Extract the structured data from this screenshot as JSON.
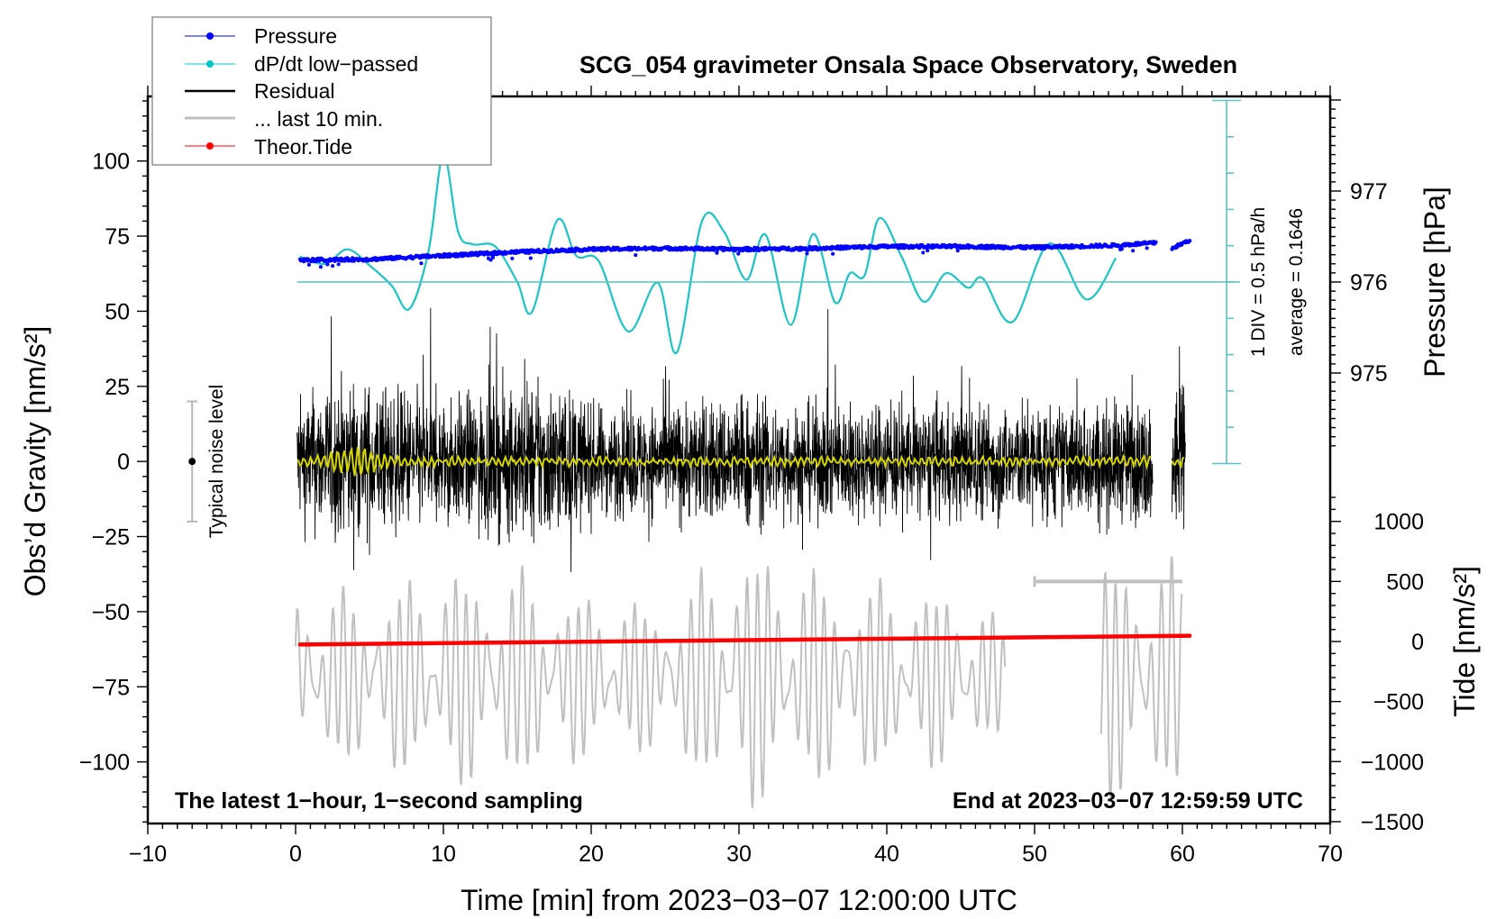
{
  "chart_data": {
    "type": "line",
    "title": "SCG_054 gravimeter Onsala Space Observatory, Sweden",
    "xlabel": "Time [min] from 2023−03−07 12:00:00 UTC",
    "ylabel": "Obs’d Gravity [nm/s²]",
    "y2label": "Pressure [hPa]",
    "y3label": "Tide [nm/s²]",
    "xlim": [
      -10,
      70
    ],
    "ylim": [
      -120.5,
      121.5
    ],
    "pressure_lim": [
      975,
      977
    ],
    "tide_lim": [
      -1500,
      1000
    ],
    "x_ticks": [
      "−10",
      "0",
      "10",
      "20",
      "30",
      "40",
      "50",
      "60",
      "70"
    ],
    "x_tick_values": [
      -10,
      0,
      10,
      20,
      30,
      40,
      50,
      60,
      70
    ],
    "y_ticks": [
      "−100",
      "−75",
      "−50",
      "−25",
      "0",
      "25",
      "50",
      "75",
      "100"
    ],
    "y_tick_values": [
      -100,
      -75,
      -50,
      -25,
      0,
      25,
      50,
      75,
      100
    ],
    "pressure_ticks": [
      "975",
      "976",
      "977"
    ],
    "pressure_tick_values": [
      975,
      976,
      977
    ],
    "tide_ticks": [
      "−1500",
      "−1000",
      "−500",
      "0",
      "500",
      "1000"
    ],
    "tide_tick_values": [
      -1500,
      -1000,
      -500,
      0,
      500,
      1000
    ],
    "legend": {
      "placement": "top-left",
      "entries": [
        {
          "label": "Pressure",
          "color": "#0000ff",
          "marker": "dot"
        },
        {
          "label": "dP/dt low−passed",
          "color": "#00c8c8",
          "marker": "dot"
        },
        {
          "label": "Residual",
          "color": "#000000",
          "marker": "line"
        },
        {
          "label": "... last 10 min.",
          "color": "#c0c0c0",
          "marker": "line"
        },
        {
          "label": "Theor.Tide",
          "color": "#ff0000",
          "marker": "dot"
        }
      ]
    },
    "annotations": {
      "left_bottom": "The latest 1−hour, 1−second sampling",
      "right_bottom": "End at 2023−03−07 12:59:59 UTC",
      "div_scale": "1 DIV = 0.5 hPa/h",
      "average": "average = 0.1646",
      "noise": "Typical noise level"
    },
    "noise_level": {
      "time": -7,
      "range": [
        -20,
        20
      ]
    },
    "dpdt_scale": {
      "hpa_per_h_per_div": 0.5,
      "divisions_each_side": 5,
      "zero_pressure": 976
    },
    "pressure": {
      "segments": [
        [
          0.3,
          58.2
        ],
        [
          59.3,
          60.5
        ]
      ],
      "t": [
        0.3,
        5,
        10,
        15,
        20,
        25,
        30,
        35,
        40,
        45,
        50,
        55,
        58.2,
        59.3,
        60.5
      ],
      "hPa": [
        976.24,
        976.25,
        976.29,
        976.33,
        976.36,
        976.37,
        976.36,
        976.37,
        976.39,
        976.39,
        976.38,
        976.4,
        976.43,
        976.37,
        976.46
      ]
    },
    "dpdt": {
      "t": [
        0.3,
        2,
        3.5,
        5,
        6.5,
        7.7,
        9,
        10,
        11,
        12,
        13.5,
        15,
        16,
        17.7,
        19,
        20.5,
        22.5,
        24.5,
        25.8,
        27.5,
        29,
        30.5,
        31.8,
        33.5,
        35,
        36.5,
        37.5,
        38.5,
        39.5,
        41,
        42.5,
        44,
        45.5,
        46.5,
        48.5,
        51,
        53.5,
        55.5
      ],
      "hPa_per_h": [
        0.35,
        0.25,
        0.45,
        0.23,
        -0.05,
        -0.37,
        0.43,
        1.75,
        0.69,
        0.52,
        0.49,
        0.0,
        -0.41,
        0.85,
        0.36,
        0.29,
        -0.68,
        -0.01,
        -0.97,
        0.84,
        0.69,
        0.03,
        0.65,
        -0.59,
        0.66,
        -0.28,
        0.12,
        0.09,
        0.88,
        0.35,
        -0.27,
        0.12,
        -0.08,
        0.05,
        -0.55,
        0.53,
        -0.24,
        0.33
      ]
    },
    "residual": {
      "segments": [
        [
          0.1,
          58.0
        ],
        [
          59.3,
          60.2
        ]
      ],
      "envelope_t": [
        0,
        2,
        4,
        6,
        8,
        10,
        12,
        14,
        16,
        18,
        20,
        22,
        24,
        26,
        28,
        30,
        32,
        34,
        36,
        38,
        40,
        42,
        44,
        46,
        48,
        50,
        52,
        54,
        56,
        58,
        60
      ],
      "envelope_amp": [
        30,
        38,
        40,
        36,
        34,
        30,
        34,
        36,
        40,
        38,
        28,
        26,
        28,
        30,
        30,
        34,
        30,
        28,
        30,
        28,
        30,
        28,
        28,
        30,
        28,
        30,
        28,
        30,
        30,
        30,
        40
      ],
      "filtered_wobble_t": [
        0,
        2,
        3,
        4,
        5,
        6,
        8,
        60
      ],
      "filtered_wobble_amp": [
        1,
        2,
        4,
        5,
        4,
        2,
        1,
        1
      ]
    },
    "last_10_min": {
      "segments": [
        [
          0.0,
          48.0
        ],
        [
          54.5,
          60.0
        ]
      ],
      "center": -300,
      "envelope_t": [
        0,
        5,
        10,
        15,
        20,
        25,
        30,
        35,
        40,
        45,
        48,
        55,
        60
      ],
      "envelope_amp": [
        650,
        650,
        800,
        800,
        600,
        550,
        1000,
        800,
        700,
        650,
        400,
        900,
        850
      ],
      "scale_bar": {
        "tide_value": 500,
        "t": [
          50,
          60
        ]
      }
    },
    "tide": {
      "t": [
        0.3,
        60.5
      ],
      "values": [
        -25,
        48
      ]
    }
  }
}
